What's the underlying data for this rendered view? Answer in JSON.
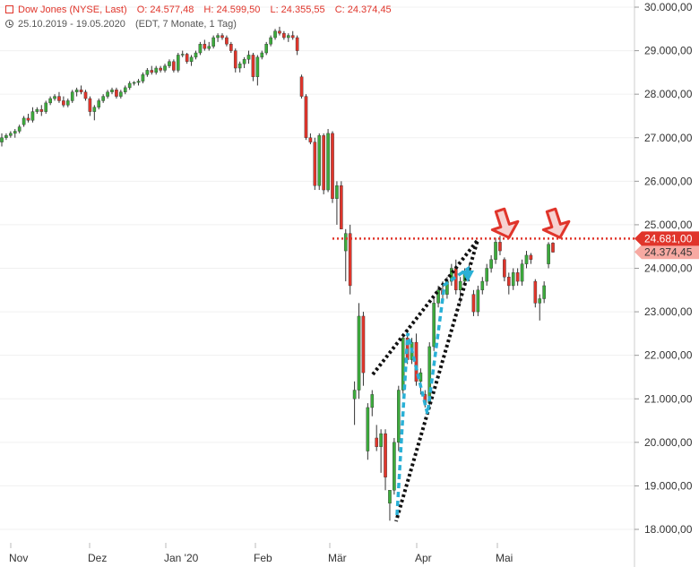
{
  "header": {
    "instrument": "Dow Jones (NYSE, Last)",
    "open": "O: 24.577,48",
    "high": "H: 24.599,50",
    "low": "L: 24.355,55",
    "close": "C: 24.374,45",
    "range": "25.10.2019 - 19.05.2020",
    "interval": "(EDT, 7 Monate, 1 Tag)"
  },
  "chart_data": {
    "type": "candlestick",
    "ylim": [
      17600,
      30000
    ],
    "y_ticks": [
      18000,
      19000,
      20000,
      21000,
      22000,
      23000,
      24000,
      25000,
      26000,
      27000,
      28000,
      29000,
      30000
    ],
    "y_tick_labels": [
      "18.000,00",
      "19.000,00",
      "20.000,00",
      "21.000,00",
      "22.000,00",
      "23.000,00",
      "24.000,00",
      "25.000,00",
      "26.000,00",
      "27.000,00",
      "28.000,00",
      "29.000,00",
      "30.000,00"
    ],
    "x_months": [
      "Nov",
      "Dez",
      "Jan '20",
      "Feb",
      "Mär",
      "Apr",
      "Mai"
    ],
    "resistance_level": 24681,
    "resistance_label": "24.681,00",
    "last_price": 24374.45,
    "last_price_label": "24.374,45",
    "colors": {
      "up": "#3cab3c",
      "down": "#e0352b",
      "resistance": "#e0352b",
      "trend": "#111111",
      "wedge": "#2ab0d6",
      "arrow": "#e0352b"
    },
    "annotations": [
      "black dotted rising wedge (Mär–Apr)",
      "cyan dashed zigzag",
      "red dotted horizontal resistance",
      "two red down-arrows at resistance"
    ],
    "candles": [
      [
        26.9,
        27.1,
        26.8,
        27.0
      ],
      [
        27.0,
        27.1,
        26.95,
        27.05
      ],
      [
        27.05,
        27.15,
        27.0,
        27.1
      ],
      [
        27.1,
        27.2,
        27.0,
        27.15
      ],
      [
        27.15,
        27.3,
        27.1,
        27.25
      ],
      [
        27.3,
        27.5,
        27.25,
        27.45
      ],
      [
        27.45,
        27.55,
        27.35,
        27.4
      ],
      [
        27.4,
        27.7,
        27.35,
        27.6
      ],
      [
        27.6,
        27.7,
        27.55,
        27.65
      ],
      [
        27.65,
        27.75,
        27.5,
        27.6
      ],
      [
        27.6,
        27.85,
        27.55,
        27.8
      ],
      [
        27.8,
        27.95,
        27.75,
        27.9
      ],
      [
        27.9,
        28.0,
        27.85,
        27.95
      ],
      [
        27.95,
        28.05,
        27.8,
        27.85
      ],
      [
        27.85,
        27.95,
        27.7,
        27.75
      ],
      [
        27.75,
        27.9,
        27.7,
        27.85
      ],
      [
        27.85,
        28.1,
        27.8,
        28.05
      ],
      [
        28.05,
        28.15,
        27.95,
        28.1
      ],
      [
        28.1,
        28.2,
        28.0,
        28.05
      ],
      [
        28.05,
        28.1,
        27.85,
        27.9
      ],
      [
        27.9,
        27.95,
        27.5,
        27.6
      ],
      [
        27.6,
        27.75,
        27.4,
        27.7
      ],
      [
        27.7,
        27.9,
        27.65,
        27.85
      ],
      [
        27.85,
        28.0,
        27.8,
        27.95
      ],
      [
        27.95,
        28.1,
        27.9,
        28.05
      ],
      [
        28.05,
        28.15,
        28.0,
        28.1
      ],
      [
        28.1,
        28.15,
        27.9,
        27.95
      ],
      [
        27.95,
        28.1,
        27.9,
        28.05
      ],
      [
        28.05,
        28.2,
        28.0,
        28.15
      ],
      [
        28.15,
        28.3,
        28.1,
        28.25
      ],
      [
        28.25,
        28.3,
        28.2,
        28.27
      ],
      [
        28.27,
        28.35,
        28.2,
        28.3
      ],
      [
        28.3,
        28.5,
        28.25,
        28.45
      ],
      [
        28.45,
        28.6,
        28.4,
        28.55
      ],
      [
        28.55,
        28.65,
        28.45,
        28.5
      ],
      [
        28.5,
        28.65,
        28.45,
        28.6
      ],
      [
        28.6,
        28.65,
        28.5,
        28.55
      ],
      [
        28.55,
        28.7,
        28.5,
        28.65
      ],
      [
        28.65,
        28.8,
        28.6,
        28.75
      ],
      [
        28.75,
        28.8,
        28.5,
        28.55
      ],
      [
        28.55,
        28.95,
        28.5,
        28.9
      ],
      [
        28.9,
        29.0,
        28.85,
        28.92
      ],
      [
        28.92,
        28.95,
        28.7,
        28.75
      ],
      [
        28.75,
        28.9,
        28.65,
        28.85
      ],
      [
        28.85,
        29.0,
        28.8,
        28.95
      ],
      [
        28.95,
        29.2,
        28.9,
        29.15
      ],
      [
        29.15,
        29.25,
        29.0,
        29.05
      ],
      [
        29.05,
        29.2,
        29.0,
        29.1
      ],
      [
        29.1,
        29.35,
        29.05,
        29.3
      ],
      [
        29.3,
        29.4,
        29.2,
        29.35
      ],
      [
        29.35,
        29.4,
        29.25,
        29.3
      ],
      [
        29.3,
        29.35,
        29.1,
        29.15
      ],
      [
        29.15,
        29.2,
        28.95,
        29.0
      ],
      [
        29.0,
        29.05,
        28.5,
        28.6
      ],
      [
        28.6,
        28.75,
        28.5,
        28.7
      ],
      [
        28.7,
        28.85,
        28.6,
        28.8
      ],
      [
        28.8,
        29.0,
        28.7,
        28.9
      ],
      [
        28.9,
        28.95,
        28.3,
        28.4
      ],
      [
        28.4,
        28.9,
        28.2,
        28.85
      ],
      [
        28.85,
        29.0,
        28.8,
        28.95
      ],
      [
        28.95,
        29.2,
        28.9,
        29.15
      ],
      [
        29.15,
        29.35,
        29.1,
        29.3
      ],
      [
        29.3,
        29.5,
        29.25,
        29.45
      ],
      [
        29.45,
        29.55,
        29.35,
        29.4
      ],
      [
        29.4,
        29.45,
        29.25,
        29.3
      ],
      [
        29.3,
        29.4,
        29.2,
        29.35
      ],
      [
        29.35,
        29.45,
        29.25,
        29.3
      ],
      [
        29.3,
        29.35,
        28.9,
        29.0
      ],
      [
        28.4,
        28.45,
        27.9,
        27.95
      ],
      [
        27.95,
        28.0,
        26.95,
        27.0
      ],
      [
        27.0,
        27.1,
        26.85,
        26.9
      ],
      [
        26.9,
        27.0,
        25.8,
        25.9
      ],
      [
        25.9,
        27.1,
        25.8,
        27.05
      ],
      [
        27.05,
        27.1,
        25.7,
        25.8
      ],
      [
        25.8,
        27.2,
        25.75,
        27.1
      ],
      [
        27.1,
        27.15,
        25.5,
        25.6
      ],
      [
        25.6,
        26.0,
        25.0,
        25.9
      ],
      [
        25.9,
        26.0,
        24.9,
        24.9
      ],
      [
        24.4,
        24.9,
        23.7,
        24.8
      ],
      [
        24.8,
        25.0,
        23.4,
        23.6
      ],
      [
        21.0,
        21.4,
        20.4,
        21.2
      ],
      [
        21.2,
        23.2,
        21.0,
        22.9
      ],
      [
        22.9,
        23.0,
        21.3,
        21.6
      ],
      [
        19.8,
        20.9,
        19.6,
        20.8
      ],
      [
        20.8,
        21.2,
        20.6,
        21.1
      ],
      [
        20.1,
        20.4,
        19.8,
        19.9
      ],
      [
        19.9,
        20.3,
        19.3,
        20.2
      ],
      [
        20.2,
        20.3,
        18.9,
        19.2
      ],
      [
        18.6,
        18.9,
        18.2,
        18.9
      ],
      [
        18.9,
        20.1,
        18.8,
        20.0
      ],
      [
        20.0,
        21.3,
        19.8,
        21.2
      ],
      [
        21.2,
        22.5,
        21.1,
        22.4
      ],
      [
        22.4,
        22.6,
        21.8,
        21.9
      ],
      [
        21.9,
        22.4,
        21.8,
        22.3
      ],
      [
        22.3,
        22.5,
        21.3,
        21.4
      ],
      [
        21.4,
        21.7,
        21.1,
        21.6
      ],
      [
        21.1,
        21.2,
        20.8,
        20.9
      ],
      [
        20.9,
        22.3,
        20.8,
        22.2
      ],
      [
        22.2,
        23.3,
        22.1,
        23.2
      ],
      [
        23.2,
        23.6,
        23.1,
        23.5
      ],
      [
        23.5,
        23.7,
        23.2,
        23.4
      ],
      [
        23.4,
        23.8,
        23.3,
        23.7
      ],
      [
        23.7,
        24.1,
        23.6,
        24.0
      ],
      [
        24.0,
        24.2,
        23.4,
        23.5
      ],
      [
        23.5,
        23.8,
        23.2,
        23.7
      ],
      [
        23.7,
        24.0,
        23.6,
        23.9
      ],
      [
        23.9,
        24.1,
        23.7,
        24.0
      ],
      [
        23.4,
        23.5,
        22.9,
        23.0
      ],
      [
        23.0,
        23.6,
        22.9,
        23.5
      ],
      [
        23.5,
        23.8,
        23.4,
        23.7
      ],
      [
        23.7,
        24.1,
        23.6,
        24.0
      ],
      [
        24.0,
        24.3,
        23.9,
        24.2
      ],
      [
        24.2,
        24.7,
        24.1,
        24.6
      ],
      [
        24.6,
        24.75,
        24.3,
        24.4
      ],
      [
        24.2,
        24.25,
        23.7,
        23.8
      ],
      [
        23.8,
        23.9,
        23.4,
        23.6
      ],
      [
        23.6,
        24.0,
        23.5,
        23.9
      ],
      [
        23.9,
        24.0,
        23.6,
        23.7
      ],
      [
        23.7,
        24.2,
        23.6,
        24.1
      ],
      [
        24.1,
        24.4,
        24.0,
        24.3
      ],
      [
        24.3,
        24.35,
        24.1,
        24.2
      ],
      [
        23.7,
        23.75,
        23.1,
        23.2
      ],
      [
        23.2,
        23.4,
        22.8,
        23.3
      ],
      [
        23.3,
        23.7,
        23.2,
        23.6
      ],
      [
        24.1,
        24.6,
        24.0,
        24.55
      ],
      [
        24.58,
        24.6,
        24.36,
        24.37
      ]
    ]
  }
}
